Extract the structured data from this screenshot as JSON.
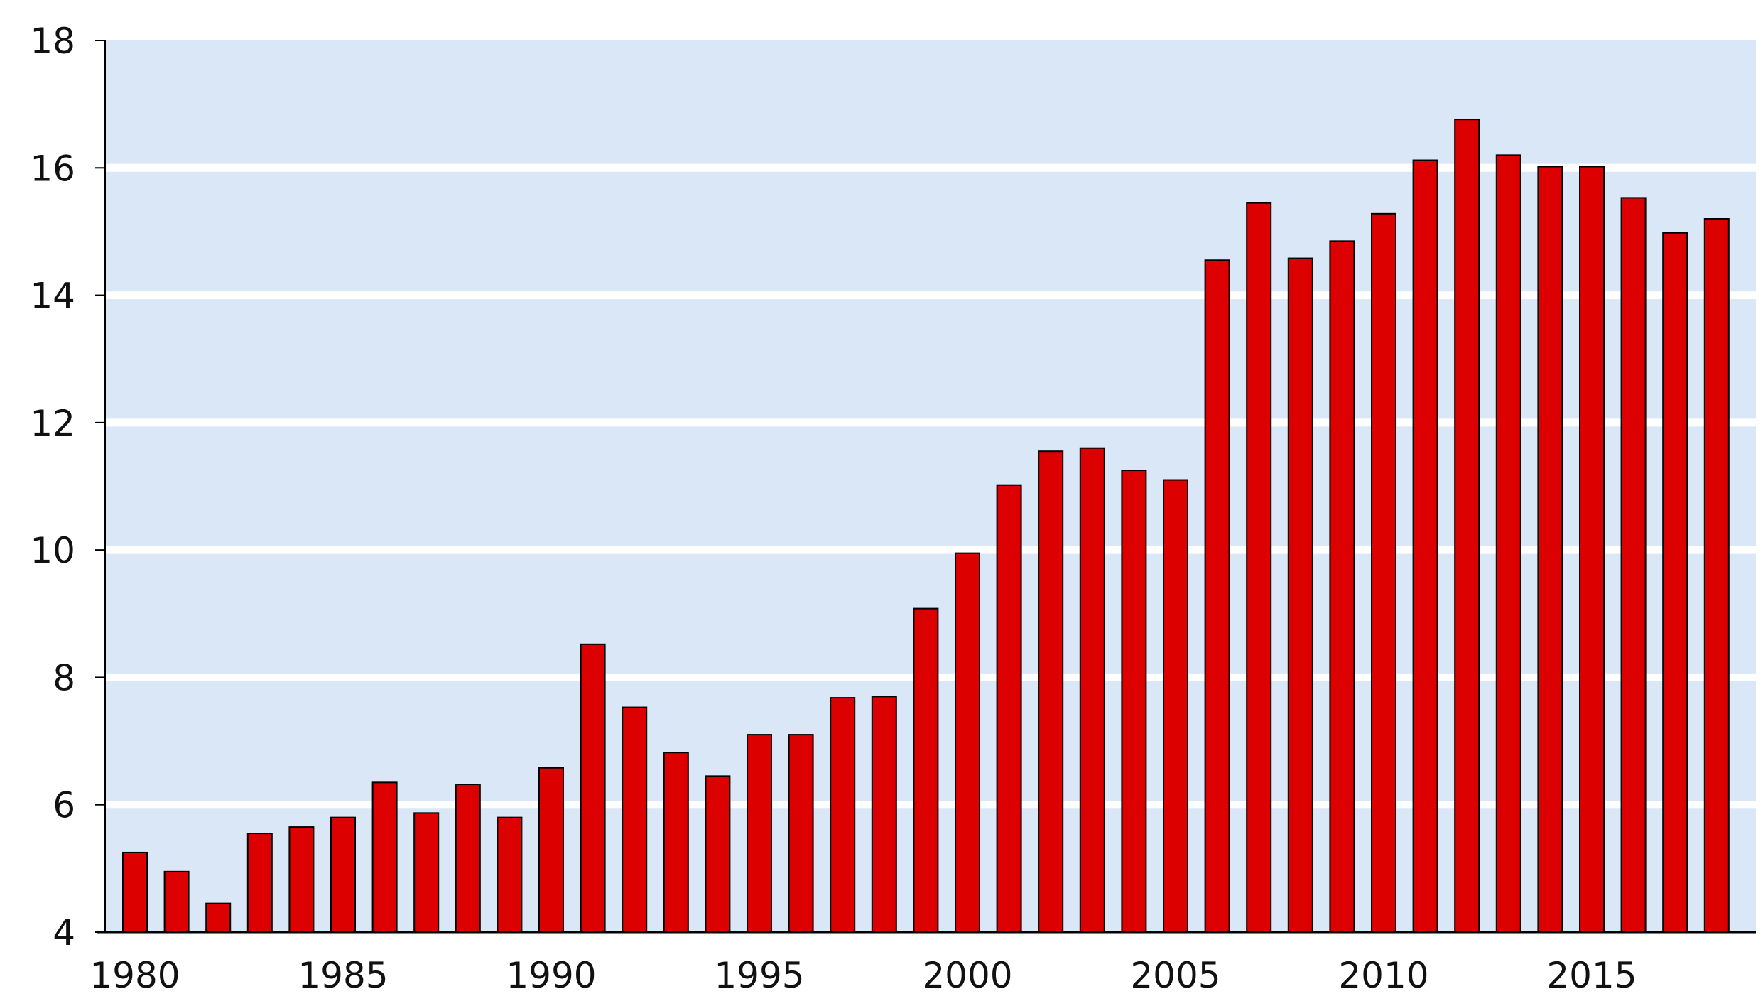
{
  "chart_data": {
    "type": "bar",
    "title": "",
    "xlabel": "",
    "ylabel": "",
    "categories": [
      1980,
      1981,
      1982,
      1983,
      1984,
      1985,
      1986,
      1987,
      1988,
      1989,
      1990,
      1991,
      1992,
      1993,
      1994,
      1995,
      1996,
      1997,
      1998,
      1999,
      2000,
      2001,
      2002,
      2003,
      2004,
      2005,
      2006,
      2007,
      2008,
      2009,
      2010,
      2011,
      2012,
      2013,
      2014,
      2015,
      2016,
      2017,
      2018
    ],
    "values": [
      5.25,
      4.95,
      4.45,
      5.55,
      5.65,
      5.8,
      6.35,
      5.87,
      6.32,
      5.8,
      6.58,
      8.52,
      7.53,
      6.82,
      6.45,
      7.1,
      7.1,
      7.68,
      7.7,
      9.08,
      9.95,
      11.02,
      11.55,
      11.6,
      11.25,
      11.1,
      14.55,
      15.45,
      14.58,
      14.85,
      15.28,
      16.12,
      16.76,
      16.2,
      16.02,
      16.02,
      15.53,
      14.98,
      15.2
    ],
    "x_tick_labels": [
      "1980",
      "1985",
      "1990",
      "1995",
      "2000",
      "2005",
      "2010",
      "2015"
    ],
    "y_ticks": [
      4,
      6,
      8,
      10,
      12,
      14,
      16,
      18
    ],
    "ylim": [
      4,
      18
    ],
    "grid": true,
    "colors": {
      "bar": "#dd0000",
      "bar_stroke": "#000000",
      "plot_background": "#dae7f6",
      "gridline": "#ffffff",
      "axis": "#000000"
    }
  }
}
